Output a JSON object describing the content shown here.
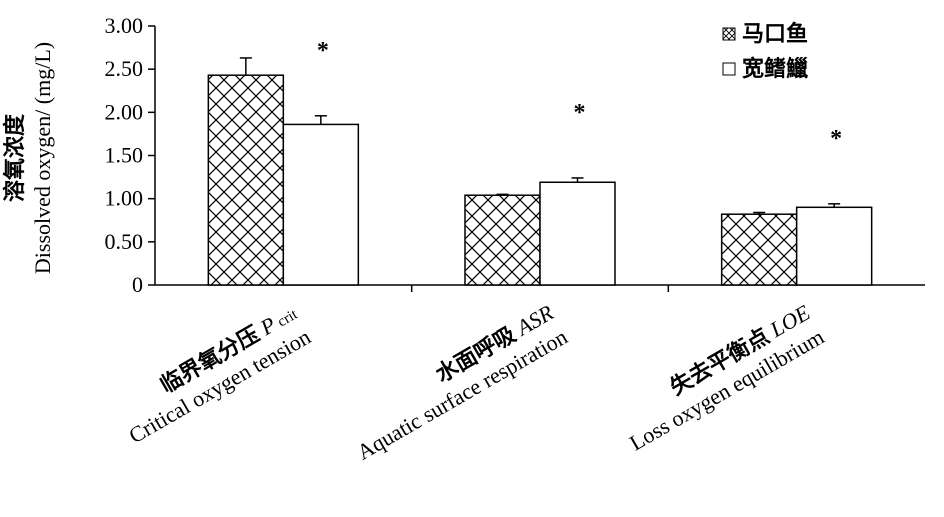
{
  "chart_data": {
    "type": "bar",
    "ylabel_cn": "溶氧浓度",
    "ylabel_en": "Dissolved oxygen/ (mg/L)",
    "ylim": [
      0,
      3.0
    ],
    "yticks": [
      "0",
      "0.50",
      "1.00",
      "1.50",
      "2.00",
      "2.50",
      "3.00"
    ],
    "ytick_values": [
      0,
      0.5,
      1.0,
      1.5,
      2.0,
      2.5,
      3.0
    ],
    "categories": [
      {
        "cn": "临界氧分压",
        "abbr": "P",
        "sub": "crit",
        "en": "Critical oxygen tension"
      },
      {
        "cn": "水面呼吸",
        "abbr": "ASR",
        "sub": "",
        "en": "Aquatic surface respiration"
      },
      {
        "cn": "失去平衡点",
        "abbr": "LOE",
        "sub": "",
        "en": "Loss oxygen equilibrium"
      }
    ],
    "series": [
      {
        "name": "马口鱼",
        "pattern": "crosshatch",
        "values": [
          2.43,
          1.04,
          0.82
        ],
        "errors": [
          0.2,
          0.01,
          0.02
        ]
      },
      {
        "name": "宽鳍鱲",
        "pattern": "white",
        "values": [
          1.86,
          1.19,
          0.9
        ],
        "errors": [
          0.1,
          0.05,
          0.04
        ]
      }
    ],
    "significance": [
      "*",
      "*",
      "*"
    ],
    "legend_position": "top-right",
    "grid": false
  }
}
